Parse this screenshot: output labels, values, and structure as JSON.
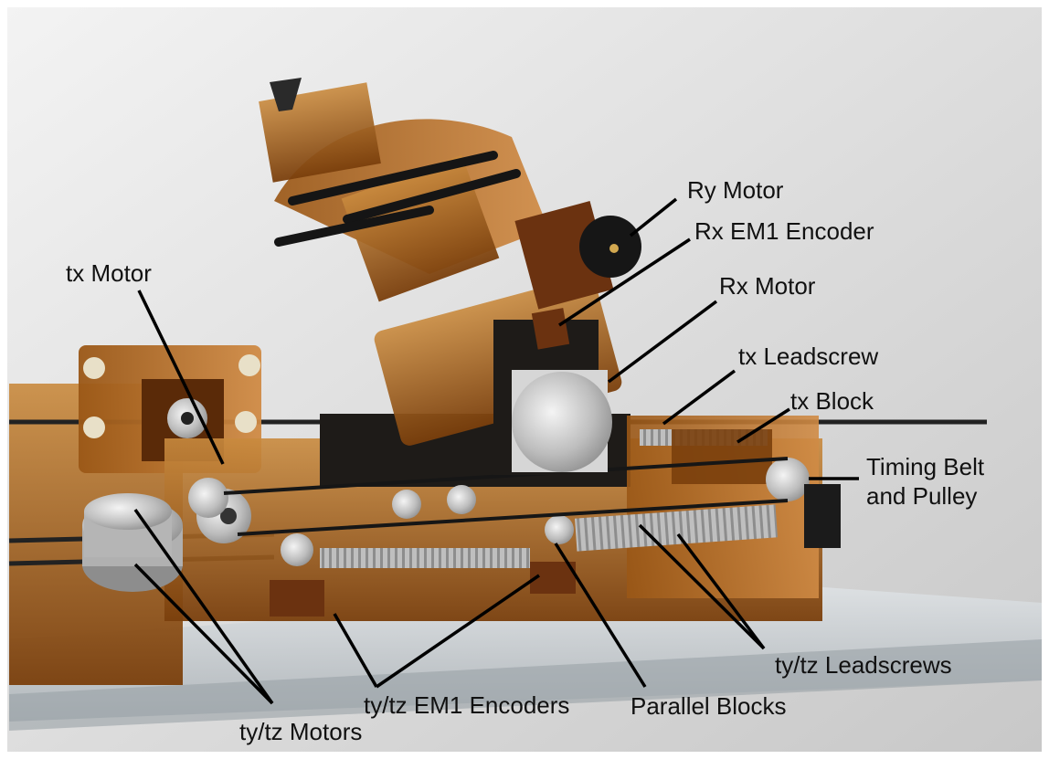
{
  "labels": {
    "ry_motor": "Ry Motor",
    "rx_em1_encoder": "Rx EM1 Encoder",
    "tx_motor": "tx Motor",
    "rx_motor": "Rx Motor",
    "tx_leadscrew": "tx Leadscrew",
    "tx_block": "tx Block",
    "timing_belt_pulley": "Timing Belt\nand Pulley",
    "ty_tz_leadscrews": "ty/tz Leadscrews",
    "ty_tz_em1_encoders": "ty/tz EM1 Encoders",
    "parallel_blocks": "Parallel Blocks",
    "ty_tz_motors": "ty/tz Motors"
  },
  "colors": {
    "amber_acrylic": "#b8641a",
    "black_parts": "#1c1a18",
    "aluminum": "#c9c9c9",
    "background": "#e6e6e6",
    "leader_line": "#000000"
  }
}
